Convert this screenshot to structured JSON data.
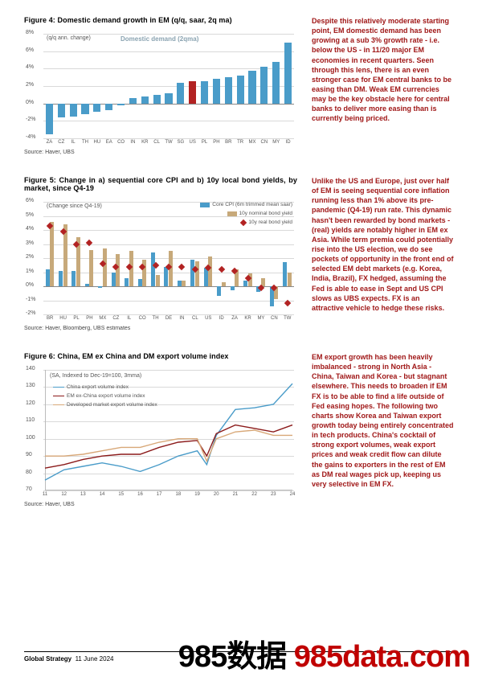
{
  "figure4": {
    "title": "Figure 4: Domestic demand growth in EM (q/q, saar, 2q ma)",
    "type": "bar",
    "innerLabel1": "(q/q ann. change)",
    "innerLabel2": "Domestic demand (2qma)",
    "source": "Source: Haver, UBS",
    "ylim": [
      -4,
      8
    ],
    "ytick_step": 2,
    "categories": [
      "ZA",
      "CZ",
      "IL",
      "TH",
      "HU",
      "EA",
      "CO",
      "IN",
      "KR",
      "CL",
      "TW",
      "SG",
      "US",
      "PL",
      "PH",
      "BR",
      "TR",
      "MX",
      "CN",
      "MY",
      "ID"
    ],
    "values": [
      -3.5,
      -1.6,
      -1.5,
      -1.2,
      -1.0,
      -0.8,
      -0.2,
      0.6,
      0.8,
      1.0,
      1.2,
      2.4,
      2.6,
      2.6,
      2.8,
      3.0,
      3.2,
      3.8,
      4.2,
      4.8,
      7.0
    ],
    "bar_color": "#4a9cc9",
    "highlight_color": "#b22222",
    "highlight_index": 12,
    "grid_color": "#d9d9d9",
    "zero_color": "#888888",
    "label_color": "#555555"
  },
  "text4": "Despite this relatively moderate starting point, EM domestic demand has been growing at a sub 3% growth rate - i.e. below the US - in 11/20 major EM economies in recent quarters. Seen through this lens, there is an even stronger case for EM central banks to be easing than DM. Weak EM currencies may be the key obstacle here for central banks to deliver more easing than is currently being priced.",
  "figure5": {
    "title": "Figure 5: Change in a) sequential core CPI and b) 10y local bond yields, by market, since Q4-19",
    "type": "bar+scatter",
    "innerLabel": "(Change since Q4-19)",
    "source": "Source: Haver, Bloomberg, UBS estimates",
    "ylim": [
      -2,
      6
    ],
    "ytick_step": 1,
    "categories": [
      "BR",
      "HU",
      "PL",
      "PH",
      "MX",
      "CZ",
      "IL",
      "CO",
      "TH",
      "DE",
      "IN",
      "CL",
      "US",
      "ID",
      "ZA",
      "KR",
      "MY",
      "CN",
      "TW"
    ],
    "series": [
      {
        "name": "Core CPI (6m trimmed mean saar)",
        "color": "#4a9cc9",
        "type": "bar",
        "values": [
          1.2,
          1.1,
          1.1,
          0.2,
          -0.1,
          1.0,
          0.6,
          0.5,
          2.4,
          1.4,
          0.4,
          1.9,
          1.3,
          -0.7,
          -0.3,
          0.4,
          -0.4,
          -1.4,
          1.7
        ]
      },
      {
        "name": "10y nominal bond yield",
        "color": "#c7a97a",
        "type": "bar",
        "values": [
          4.6,
          4.4,
          3.5,
          2.6,
          2.7,
          2.3,
          2.5,
          1.9,
          0.8,
          2.5,
          0.4,
          1.8,
          2.1,
          0.3,
          1.2,
          0.9,
          0.6,
          -0.9,
          1.0
        ]
      },
      {
        "name": "10y real bond yield",
        "color": "#b22222",
        "type": "scatter",
        "marker": "diamond",
        "values": [
          4.3,
          3.9,
          3.0,
          3.1,
          1.6,
          1.4,
          1.4,
          1.4,
          1.5,
          1.4,
          1.4,
          1.2,
          1.3,
          1.2,
          1.1,
          0.6,
          -0.1,
          -0.1,
          -1.2
        ]
      }
    ],
    "grid_color": "#d9d9d9",
    "zero_color": "#888888"
  },
  "text5": "Unlike the US and Europe, just over half of EM is seeing sequential core inflation running less than 1% above its pre-pandemic (Q4-19) run rate. This dynamic hasn't been rewarded by bond markets - (real) yields are notably higher in EM ex Asia. While term premia could potentially rise into the US election, we do see pockets of opportunity in the front end of selected EM debt markets (e.g. Korea, India, Brazil), FX hedged, assuming the Fed is able to ease in Sept and US CPI slows as UBS expects. FX is an attractive vehicle to hedge these risks.",
  "figure6": {
    "title": "Figure 6: China, EM ex China and DM export volume index",
    "type": "line",
    "innerLabel": "(SA, Indexed to Dec-19=100, 3mma)",
    "source": "Source: Haver, UBS",
    "ylim": [
      70,
      140
    ],
    "ytick_step": 10,
    "xcategories": [
      "11",
      "12",
      "13",
      "14",
      "15",
      "16",
      "17",
      "18",
      "19",
      "20",
      "21",
      "22",
      "23",
      "24"
    ],
    "series": [
      {
        "name": "China export volume index",
        "color": "#4a9cc9",
        "points": [
          [
            0,
            76
          ],
          [
            1,
            82
          ],
          [
            2,
            84
          ],
          [
            3,
            86
          ],
          [
            4,
            84
          ],
          [
            5,
            81
          ],
          [
            6,
            85
          ],
          [
            7,
            90
          ],
          [
            8,
            93
          ],
          [
            8.5,
            85
          ],
          [
            9,
            102
          ],
          [
            10,
            117
          ],
          [
            11,
            118
          ],
          [
            12,
            120
          ],
          [
            13,
            132
          ]
        ]
      },
      {
        "name": "EM ex-China export volume index",
        "color": "#8b1a1a",
        "points": [
          [
            0,
            83
          ],
          [
            1,
            85
          ],
          [
            2,
            88
          ],
          [
            3,
            90
          ],
          [
            4,
            91
          ],
          [
            5,
            91
          ],
          [
            6,
            95
          ],
          [
            7,
            98
          ],
          [
            8,
            99
          ],
          [
            8.5,
            90
          ],
          [
            9,
            103
          ],
          [
            10,
            108
          ],
          [
            11,
            106
          ],
          [
            12,
            104
          ],
          [
            13,
            108
          ]
        ]
      },
      {
        "name": "Developed market export volume index",
        "color": "#d8a878",
        "points": [
          [
            0,
            90
          ],
          [
            1,
            90
          ],
          [
            2,
            91
          ],
          [
            3,
            93
          ],
          [
            4,
            95
          ],
          [
            5,
            95
          ],
          [
            6,
            98
          ],
          [
            7,
            100
          ],
          [
            8,
            100
          ],
          [
            8.5,
            87
          ],
          [
            9,
            100
          ],
          [
            10,
            104
          ],
          [
            11,
            105
          ],
          [
            12,
            102
          ],
          [
            13,
            102
          ]
        ]
      }
    ],
    "grid_color": "#d9d9d9"
  },
  "text6": "EM export growth has been heavily imbalanced - strong in North Asia - China, Taiwan and Korea - but stagnant elsewhere. This needs to broaden if EM FX is to be able to find a life outside of Fed easing hopes. The following two charts show Korea and Taiwan export growth today being entirely concentrated in tech products. China's cocktail of strong export volumes, weak export prices and weak credit flow can dilute the gains to exporters in the rest of EM as DM real wages pick up, keeping us very selective in EM FX.",
  "footer": {
    "left1": "Global Strategy",
    "left2": "11 June 2024",
    "page": "5"
  },
  "watermark1": "985数据 ",
  "watermark2": "985data.com"
}
